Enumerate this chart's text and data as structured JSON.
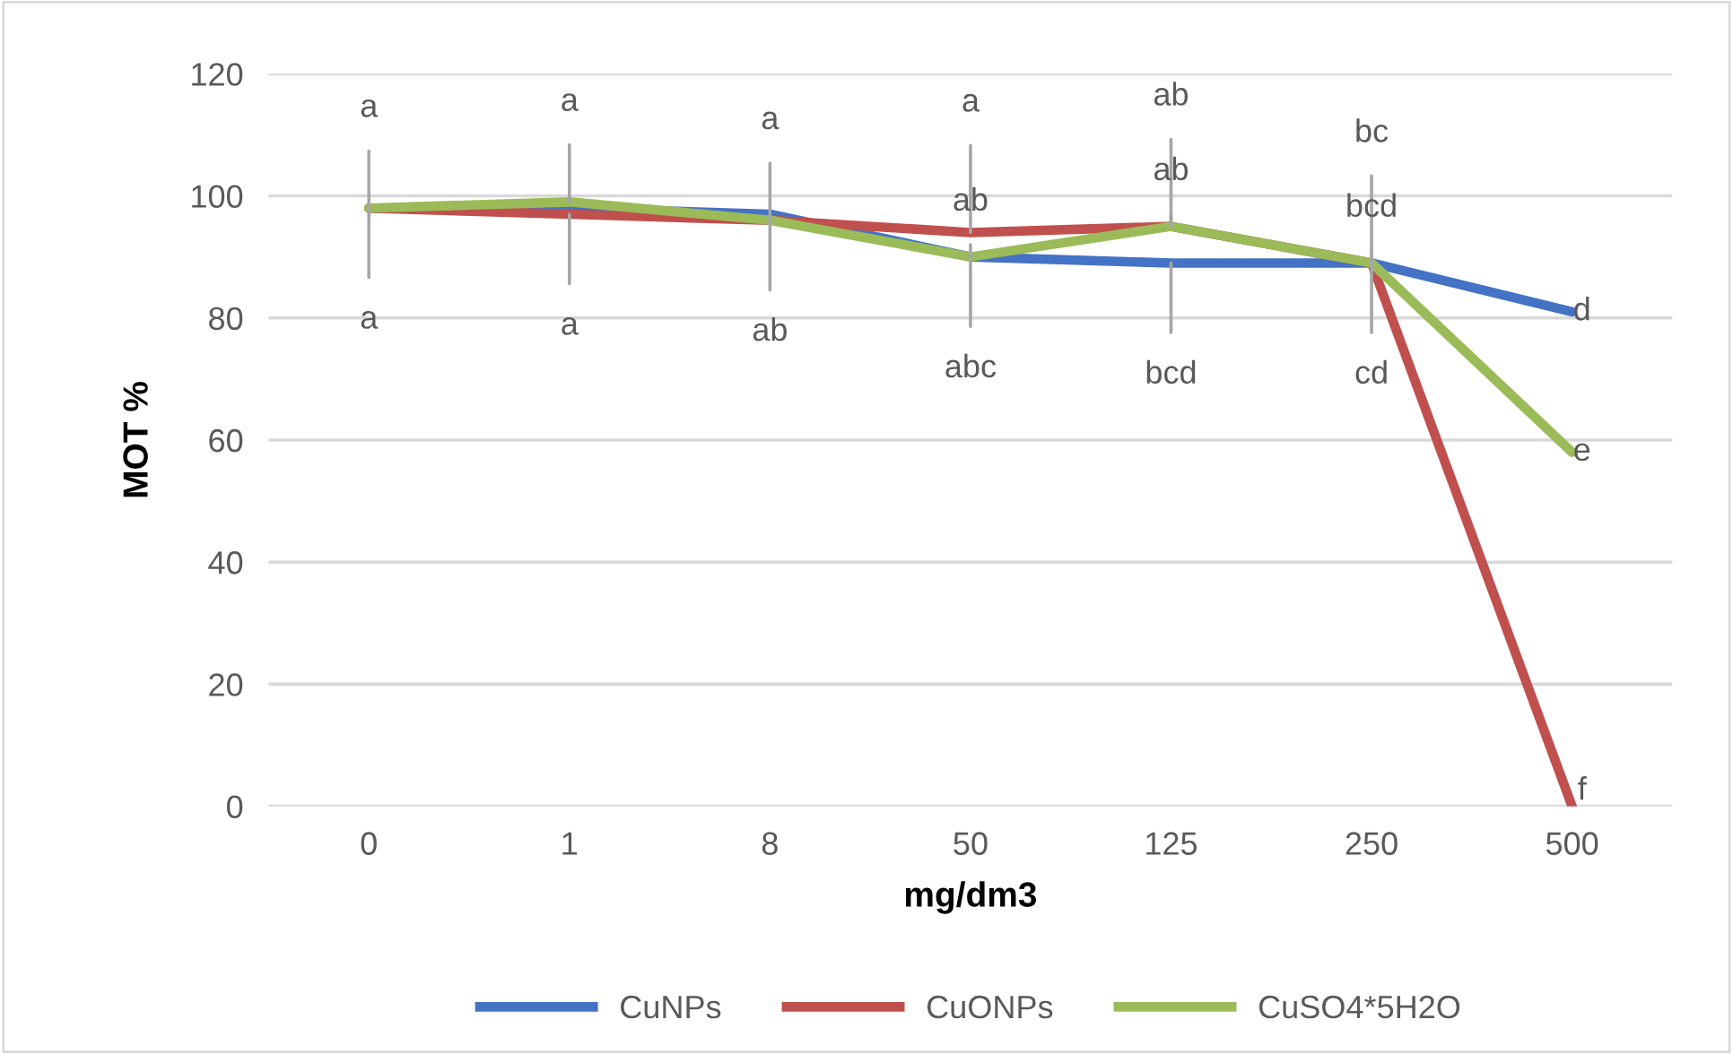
{
  "chart_data": {
    "type": "line",
    "xlabel": "mg/dm3",
    "ylabel": "MOT %",
    "categories": [
      "0",
      "1",
      "8",
      "50",
      "125",
      "250",
      "500"
    ],
    "series": [
      {
        "name": "CuNPs",
        "color": "#4472c4",
        "values": [
          98,
          98,
          97,
          90,
          89,
          89,
          81
        ]
      },
      {
        "name": "CuONPs",
        "color": "#c0504d",
        "values": [
          98,
          97,
          96,
          94,
          95,
          89,
          0
        ]
      },
      {
        "name": "CuSO4*5H2O",
        "color": "#9bbb59",
        "values": [
          98,
          99,
          96,
          90,
          95,
          89,
          58
        ]
      }
    ],
    "ylim": [
      0,
      120
    ],
    "yticks": [
      0,
      20,
      40,
      60,
      80,
      100,
      120
    ],
    "grid": "y",
    "legend": "bottom",
    "marker": "none",
    "line_style": "solid",
    "annotations": [
      {
        "text": "a",
        "x": "0",
        "y": 98
      },
      {
        "text": "a",
        "x": "0",
        "y": 98
      },
      {
        "text": "a",
        "x": "1",
        "y": 99
      },
      {
        "text": "a",
        "x": "1",
        "y": 97
      },
      {
        "text": "a",
        "x": "8",
        "y": 96
      },
      {
        "text": "ab",
        "x": "8",
        "y": 96
      },
      {
        "text": "a",
        "x": "50",
        "y": 94
      },
      {
        "text": "ab",
        "x": "50",
        "y": 90
      },
      {
        "text": "abc",
        "x": "50",
        "y": 90
      },
      {
        "text": "ab",
        "x": "125",
        "y": 95
      },
      {
        "text": "ab",
        "x": "125",
        "y": 95
      },
      {
        "text": "bcd",
        "x": "125",
        "y": 89
      },
      {
        "text": "bc",
        "x": "250",
        "y": 89
      },
      {
        "text": "bcd",
        "x": "250",
        "y": 89
      },
      {
        "text": "cd",
        "x": "250",
        "y": 89
      },
      {
        "text": "d",
        "x": "500",
        "y": 81
      },
      {
        "text": "e",
        "x": "500",
        "y": 58
      },
      {
        "text": "f",
        "x": "500",
        "y": 0
      }
    ]
  }
}
